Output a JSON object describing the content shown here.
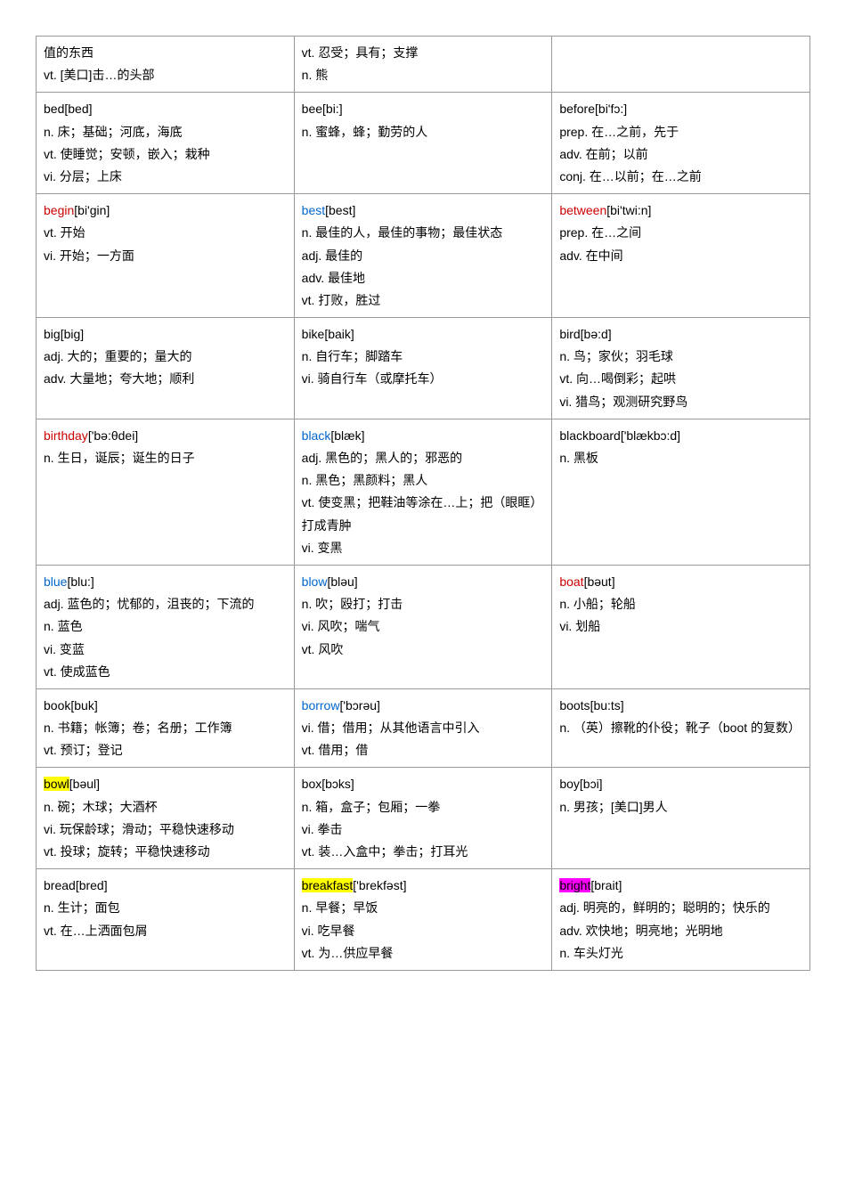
{
  "colors": {
    "border": "#999999",
    "text": "#000000",
    "link_blue": "#0066cc",
    "link_red": "#cc0000",
    "hl_yellow": "#ffff00",
    "hl_magenta": "#ff00ff",
    "background": "#ffffff"
  },
  "typography": {
    "font_family": "SimSun / 宋体 / Arial",
    "font_size_pt": 10.5,
    "line_height": 1.8
  },
  "rows": [
    {
      "cells": [
        {
          "lines": [
            {
              "text": "值的东西"
            },
            {
              "pos": "vt.",
              "text": " [美口]击…的头部"
            }
          ]
        },
        {
          "lines": [
            {
              "pos": "vt.",
              "text": " 忍受；具有；支撑"
            },
            {
              "pos": "n.",
              "text": " 熊"
            }
          ]
        },
        {
          "lines": []
        }
      ]
    },
    {
      "cells": [
        {
          "lines": [
            {
              "hw": "bed",
              "hw_style": "normal",
              "pron": "[bed]"
            },
            {
              "pos": "n.",
              "text": " 床；基础；河底，海底"
            },
            {
              "pos": "vt.",
              "text": " 使睡觉；安顿，嵌入；栽种"
            },
            {
              "pos": "vi.",
              "text": " 分层；上床"
            }
          ]
        },
        {
          "lines": [
            {
              "hw": "bee",
              "hw_style": "normal",
              "pron": "[bi:]"
            },
            {
              "pos": "n.",
              "text": " 蜜蜂，蜂；勤劳的人"
            }
          ]
        },
        {
          "lines": [
            {
              "hw": "before",
              "hw_style": "normal",
              "pron": "[bi'fɔ:]"
            },
            {
              "pos": "prep.",
              "text": " 在…之前，先于"
            },
            {
              "pos": "adv.",
              "text": " 在前；以前"
            },
            {
              "pos": "conj.",
              "text": " 在…以前；在…之前"
            }
          ]
        }
      ]
    },
    {
      "cells": [
        {
          "lines": [
            {
              "hw": "begin",
              "hw_style": "red",
              "pron": "[bi'gin]"
            },
            {
              "pos": "vt.",
              "text": " 开始"
            },
            {
              "pos": "vi.",
              "text": " 开始；一方面"
            }
          ]
        },
        {
          "lines": [
            {
              "hw": "best",
              "hw_style": "blue",
              "pron": "[best]"
            },
            {
              "pos": "n.",
              "text": " 最佳的人，最佳的事物；最佳状态"
            },
            {
              "pos": "adj.",
              "text": " 最佳的"
            },
            {
              "pos": "adv.",
              "text": " 最佳地"
            },
            {
              "pos": "vt.",
              "text": " 打败，胜过"
            }
          ]
        },
        {
          "lines": [
            {
              "hw": "between",
              "hw_style": "red",
              "pron": "[bi'twi:n]"
            },
            {
              "pos": "prep.",
              "text": " 在…之间"
            },
            {
              "pos": "adv.",
              "text": " 在中间"
            }
          ]
        }
      ]
    },
    {
      "cells": [
        {
          "lines": [
            {
              "hw": "big",
              "hw_style": "normal",
              "pron": "[big]"
            },
            {
              "pos": "adj.",
              "text": " 大的；重要的；量大的"
            },
            {
              "pos": "adv.",
              "text": " 大量地；夸大地；顺利"
            }
          ]
        },
        {
          "lines": [
            {
              "hw": "bike",
              "hw_style": "normal",
              "pron": "[baik]"
            },
            {
              "pos": "n.",
              "text": " 自行车；脚踏车"
            },
            {
              "pos": "vi.",
              "text": " 骑自行车（或摩托车）"
            }
          ]
        },
        {
          "lines": [
            {
              "hw": "bird",
              "hw_style": "normal",
              "pron": "[bə:d]"
            },
            {
              "pos": "n.",
              "text": " 鸟；家伙；羽毛球"
            },
            {
              "pos": "vt.",
              "text": " 向…喝倒彩；起哄"
            },
            {
              "pos": "vi.",
              "text": " 猎鸟；观测研究野鸟"
            }
          ]
        }
      ]
    },
    {
      "cells": [
        {
          "lines": [
            {
              "hw": "birthday",
              "hw_style": "red",
              "pron": "['bə:θdei]"
            },
            {
              "pos": "n.",
              "text": " 生日，诞辰；诞生的日子"
            }
          ]
        },
        {
          "lines": [
            {
              "hw": "black",
              "hw_style": "blue",
              "pron": "[blæk]"
            },
            {
              "pos": "adj.",
              "text": " 黑色的；黑人的；邪恶的"
            },
            {
              "pos": "n.",
              "text": " 黑色；黑颜料；黑人"
            },
            {
              "pos": "vt.",
              "text": " 使变黑；把鞋油等涂在…上；把（眼眶）打成青肿"
            },
            {
              "pos": "vi.",
              "text": " 变黑"
            }
          ]
        },
        {
          "lines": [
            {
              "hw": "blackboard",
              "hw_style": "normal",
              "pron": "['blækbɔ:d]"
            },
            {
              "pos": "n.",
              "text": " 黑板"
            }
          ]
        }
      ]
    },
    {
      "cells": [
        {
          "lines": [
            {
              "hw": "blue",
              "hw_style": "blue",
              "pron": "[blu:]"
            },
            {
              "pos": "adj.",
              "text": " 蓝色的；忧郁的，沮丧的；下流的"
            },
            {
              "pos": "n.",
              "text": " 蓝色"
            },
            {
              "pos": "vi.",
              "text": " 变蓝"
            },
            {
              "pos": "vt.",
              "text": " 使成蓝色"
            }
          ]
        },
        {
          "lines": [
            {
              "hw": "blow",
              "hw_style": "blue",
              "pron": "[bləu]"
            },
            {
              "pos": "n.",
              "text": " 吹；殴打；打击"
            },
            {
              "pos": "vi.",
              "text": " 风吹；喘气"
            },
            {
              "pos": "vt.",
              "text": " 风吹"
            }
          ]
        },
        {
          "lines": [
            {
              "hw": "boat",
              "hw_style": "red",
              "pron": "[bəut]"
            },
            {
              "pos": "n.",
              "text": " 小船；轮船"
            },
            {
              "pos": "vi.",
              "text": " 划船"
            }
          ]
        }
      ]
    },
    {
      "cells": [
        {
          "lines": [
            {
              "hw": "book",
              "hw_style": "normal",
              "pron": "[buk]"
            },
            {
              "pos": "n.",
              "text": " 书籍；帐簿；卷；名册；工作簿"
            },
            {
              "pos": "vt.",
              "text": " 预订；登记"
            }
          ]
        },
        {
          "lines": [
            {
              "hw": "borrow",
              "hw_style": "blue",
              "pron": "['bɔrəu]"
            },
            {
              "pos": "vi.",
              "text": " 借；借用；从其他语言中引入"
            },
            {
              "pos": "vt.",
              "text": " 借用；借"
            }
          ]
        },
        {
          "lines": [
            {
              "hw": "boots",
              "hw_style": "normal",
              "pron": "[bu:ts]"
            },
            {
              "pos": "n.",
              "text": " （英）擦靴的仆役；靴子（boot 的复数）"
            }
          ]
        }
      ]
    },
    {
      "cells": [
        {
          "lines": [
            {
              "hw": "bowl",
              "hw_style": "hl-yellow",
              "pron": "[bəul]"
            },
            {
              "pos": "n.",
              "text": " 碗；木球；大酒杯"
            },
            {
              "pos": "vi.",
              "text": " 玩保龄球；滑动；平稳快速移动"
            },
            {
              "pos": "vt.",
              "text": " 投球；旋转；平稳快速移动"
            }
          ]
        },
        {
          "lines": [
            {
              "hw": "box",
              "hw_style": "normal",
              "pron": "[bɔks]"
            },
            {
              "pos": "n.",
              "text": " 箱，盒子；包厢；一拳"
            },
            {
              "pos": "vi.",
              "text": " 拳击"
            },
            {
              "pos": "vt.",
              "text": " 装…入盒中；拳击；打耳光"
            }
          ]
        },
        {
          "lines": [
            {
              "hw": "boy",
              "hw_style": "normal",
              "pron": "[bɔi]"
            },
            {
              "pos": "n.",
              "text": " 男孩；[美口]男人"
            }
          ]
        }
      ]
    },
    {
      "cells": [
        {
          "lines": [
            {
              "hw": "bread",
              "hw_style": "normal",
              "pron": "[bred]"
            },
            {
              "pos": "n.",
              "text": " 生计；面包"
            },
            {
              "pos": "vt.",
              "text": " 在…上洒面包屑"
            }
          ]
        },
        {
          "lines": [
            {
              "hw": "breakfast",
              "hw_style": "hl-yellow",
              "pron": "['brekfəst]"
            },
            {
              "pos": "n.",
              "text": " 早餐；早饭"
            },
            {
              "pos": "vi.",
              "text": " 吃早餐"
            },
            {
              "pos": "vt.",
              "text": " 为…供应早餐"
            }
          ]
        },
        {
          "lines": [
            {
              "hw": "bright",
              "hw_style": "hl-magenta",
              "pron": "[brait]"
            },
            {
              "pos": "adj.",
              "text": " 明亮的，鲜明的；聪明的；快乐的"
            },
            {
              "pos": "adv.",
              "text": " 欢快地；明亮地；光明地"
            },
            {
              "pos": "n.",
              "text": " 车头灯光"
            }
          ]
        }
      ]
    }
  ]
}
